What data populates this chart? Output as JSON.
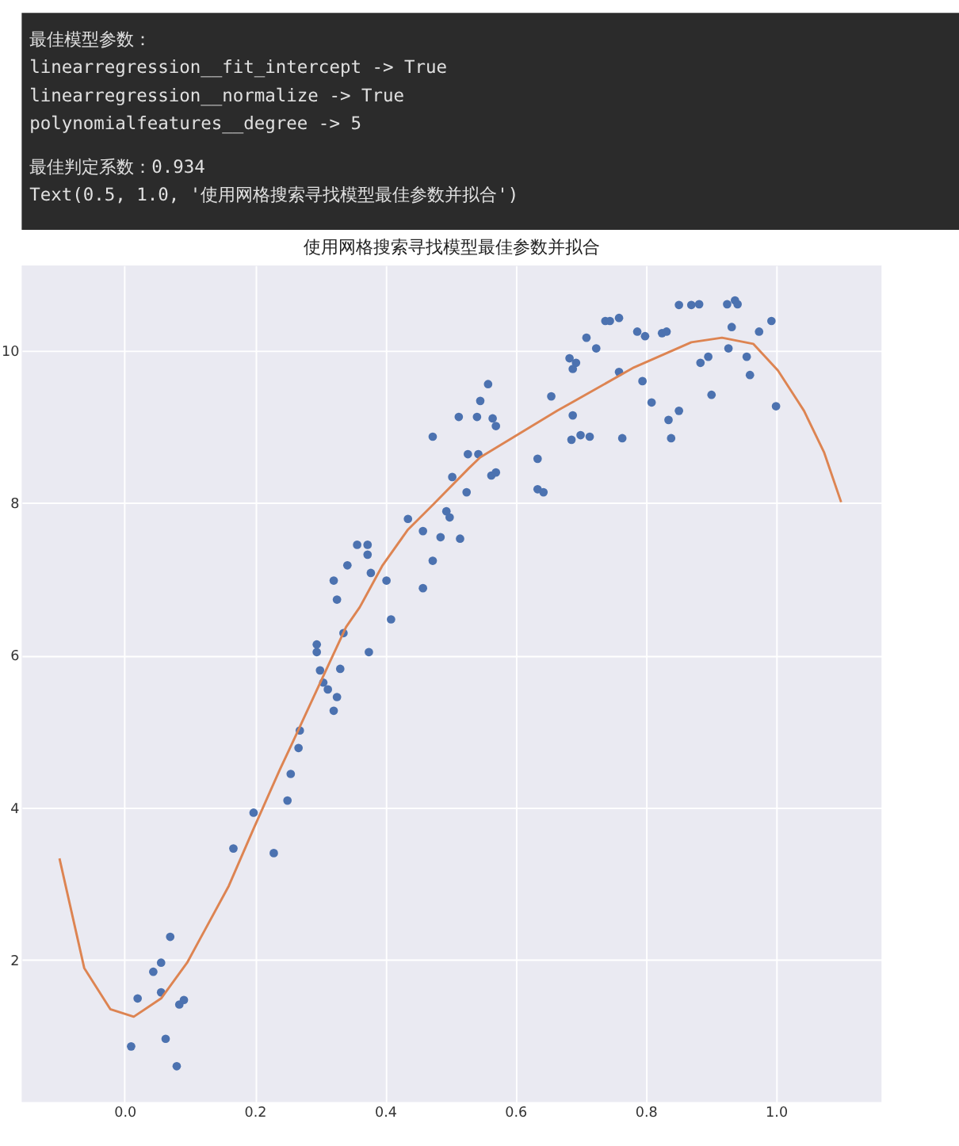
{
  "chart_data": {
    "type": "scatter",
    "title": "使用网格搜索寻找模型最佳参数并拟合",
    "annotations": [
      "最佳模型参数：",
      "linearregression__fit_intercept           -> True",
      "linearregression__normalize               -> True",
      "polynomialfeatures__degree                -> 5",
      "最佳判定系数：0.934",
      "Text(0.5, 1.0, '使用网格搜索寻找模型最佳参数并拟合')"
    ],
    "xlim": [
      -0.158,
      1.162
    ],
    "ylim": [
      0.13,
      11.12
    ],
    "xticks": [
      {
        "value": 0,
        "label": "0.0"
      },
      {
        "value": 0.2,
        "label": "0.2"
      },
      {
        "value": 0.4,
        "label": "0.4"
      },
      {
        "value": 0.6,
        "label": "0.6"
      },
      {
        "value": 0.8,
        "label": "0.8"
      },
      {
        "value": 1,
        "label": "1.0"
      }
    ],
    "yticks": [
      2,
      4,
      6,
      8,
      10
    ],
    "grid": true,
    "series": [
      {
        "marker": "circle",
        "color": "#4c72b0",
        "x": [
          0.01,
          0.02,
          0.044,
          0.056,
          0.056,
          0.063,
          0.07,
          0.08,
          0.084,
          0.091,
          0.167,
          0.198,
          0.229,
          0.25,
          0.255,
          0.267,
          0.269,
          0.295,
          0.295,
          0.3,
          0.305,
          0.312,
          0.321,
          0.326,
          0.331,
          0.336,
          0.321,
          0.326,
          0.342,
          0.357,
          0.373,
          0.373,
          0.378,
          0.375,
          0.402,
          0.409,
          0.435,
          0.458,
          0.458,
          0.473,
          0.485,
          0.494,
          0.499,
          0.503,
          0.515,
          0.525,
          0.563,
          0.57,
          0.634,
          0.634,
          0.643,
          0.655,
          0.683,
          0.693,
          0.688,
          0.688,
          0.686,
          0.7,
          0.714,
          0.709,
          0.724,
          0.738,
          0.745,
          0.759,
          0.759,
          0.764,
          0.787,
          0.799,
          0.795,
          0.809,
          0.825,
          0.832,
          0.835,
          0.839,
          0.851,
          0.851,
          0.87,
          0.882,
          0.884,
          0.896,
          0.901,
          0.925,
          0.932,
          0.927,
          0.937,
          0.941,
          0.955,
          0.96,
          0.974,
          0.993,
          1.0,
          0.473,
          0.513,
          0.527,
          0.543,
          0.541,
          0.546,
          0.558,
          0.565,
          0.57
        ],
        "values": [
          0.86,
          1.49,
          1.84,
          1.96,
          1.57,
          0.96,
          2.3,
          0.6,
          1.41,
          1.47,
          3.46,
          3.93,
          3.4,
          4.09,
          4.44,
          4.78,
          5.01,
          6.14,
          6.04,
          5.8,
          5.64,
          5.55,
          5.27,
          5.45,
          5.82,
          6.29,
          6.98,
          6.73,
          7.18,
          7.45,
          7.45,
          7.32,
          7.08,
          6.04,
          6.98,
          6.47,
          7.79,
          7.63,
          6.88,
          7.24,
          7.55,
          7.89,
          7.81,
          8.34,
          7.53,
          8.14,
          8.36,
          8.4,
          8.58,
          8.18,
          8.14,
          9.4,
          9.9,
          9.84,
          9.76,
          9.15,
          8.83,
          8.89,
          8.87,
          10.17,
          10.03,
          10.39,
          10.39,
          10.43,
          9.72,
          8.85,
          10.25,
          10.19,
          9.6,
          9.32,
          10.23,
          10.25,
          9.09,
          8.85,
          10.6,
          9.21,
          10.6,
          10.61,
          9.84,
          9.92,
          9.42,
          10.61,
          10.31,
          10.03,
          10.66,
          10.61,
          9.92,
          9.68,
          10.25,
          10.39,
          9.27,
          8.87,
          9.13,
          8.64,
          8.64,
          9.13,
          9.34,
          9.56,
          9.11,
          9.01
        ]
      },
      {
        "type": "line",
        "marker": "none",
        "line_style": "solid",
        "color": "#dd8452",
        "x": [
          -0.1,
          -0.062,
          -0.022,
          0.014,
          0.056,
          0.096,
          0.16,
          0.198,
          0.238,
          0.255,
          0.302,
          0.34,
          0.361,
          0.396,
          0.435,
          0.475,
          0.529,
          0.546,
          0.664,
          0.782,
          0.87,
          0.917,
          0.965,
          1.003,
          1.043,
          1.074,
          1.1
        ],
        "values": [
          3.33,
          1.89,
          1.35,
          1.25,
          1.49,
          1.96,
          2.97,
          3.72,
          4.49,
          4.8,
          5.67,
          6.37,
          6.63,
          7.18,
          7.65,
          7.99,
          8.46,
          8.6,
          9.21,
          9.78,
          10.11,
          10.17,
          10.09,
          9.74,
          9.21,
          8.66,
          8.01
        ]
      }
    ]
  }
}
